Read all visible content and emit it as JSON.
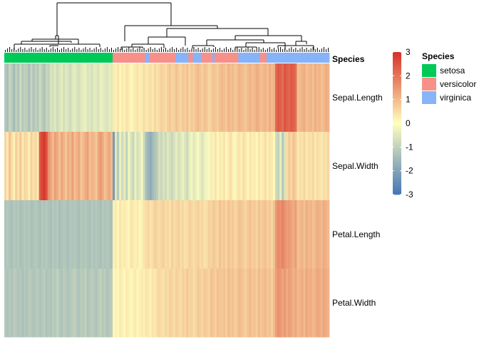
{
  "chart_data": {
    "type": "heatmap",
    "rows": [
      "Sepal.Length",
      "Sepal.Width",
      "Petal.Length",
      "Petal.Width"
    ],
    "annotation_title": "Species",
    "legend": {
      "colorbar_ticks": [
        3,
        2,
        1,
        0,
        -1,
        -2,
        -3
      ],
      "colorbar_range": [
        -3,
        3
      ],
      "species_title": "Species",
      "species": [
        {
          "name": "setosa",
          "color": "#00c957"
        },
        {
          "name": "versicolor",
          "color": "#f8908a"
        },
        {
          "name": "virginica",
          "color": "#87b3f8"
        }
      ]
    },
    "colors": {
      "low": "#4575b4",
      "mid": "#ffffbf",
      "high": "#d73027"
    },
    "column_species": [
      "setosa",
      "setosa",
      "setosa",
      "setosa",
      "setosa",
      "setosa",
      "setosa",
      "setosa",
      "setosa",
      "setosa",
      "setosa",
      "setosa",
      "setosa",
      "setosa",
      "setosa",
      "setosa",
      "setosa",
      "setosa",
      "setosa",
      "setosa",
      "setosa",
      "setosa",
      "setosa",
      "setosa",
      "setosa",
      "setosa",
      "setosa",
      "setosa",
      "setosa",
      "setosa",
      "setosa",
      "setosa",
      "setosa",
      "setosa",
      "setosa",
      "setosa",
      "setosa",
      "setosa",
      "setosa",
      "setosa",
      "setosa",
      "setosa",
      "setosa",
      "setosa",
      "setosa",
      "setosa",
      "setosa",
      "setosa",
      "setosa",
      "setosa",
      "versicolor",
      "versicolor",
      "versicolor",
      "versicolor",
      "versicolor",
      "versicolor",
      "versicolor",
      "versicolor",
      "versicolor",
      "versicolor",
      "versicolor",
      "versicolor",
      "versicolor",
      "versicolor",
      "versicolor",
      "virginica",
      "virginica",
      "versicolor",
      "versicolor",
      "versicolor",
      "versicolor",
      "versicolor",
      "versicolor",
      "versicolor",
      "versicolor",
      "versicolor",
      "versicolor",
      "versicolor",
      "versicolor",
      "virginica",
      "virginica",
      "virginica",
      "virginica",
      "virginica",
      "virginica",
      "versicolor",
      "versicolor",
      "virginica",
      "virginica",
      "virginica",
      "virginica",
      "versicolor",
      "versicolor",
      "versicolor",
      "versicolor",
      "versicolor",
      "virginica",
      "versicolor",
      "versicolor",
      "versicolor",
      "versicolor",
      "versicolor",
      "versicolor",
      "versicolor",
      "versicolor",
      "versicolor",
      "versicolor",
      "versicolor",
      "virginica",
      "virginica",
      "virginica",
      "virginica",
      "virginica",
      "virginica",
      "virginica",
      "virginica",
      "virginica",
      "virginica",
      "versicolor",
      "versicolor",
      "versicolor",
      "virginica",
      "virginica",
      "virginica",
      "virginica",
      "virginica",
      "virginica",
      "virginica",
      "virginica",
      "virginica",
      "virginica",
      "virginica",
      "virginica",
      "virginica",
      "virginica",
      "virginica",
      "virginica",
      "virginica",
      "virginica",
      "virginica",
      "virginica",
      "virginica",
      "virginica",
      "virginica",
      "virginica",
      "virginica",
      "virginica",
      "virginica",
      "virginica",
      "virginica"
    ],
    "values": [
      [
        -1.2,
        -1.4,
        -0.9,
        -1.1,
        -1.5,
        -1.0,
        -1.3,
        -0.8,
        -1.2,
        -1.0,
        -1.1,
        -1.4,
        -0.9,
        -1.3,
        -1.0,
        -1.2,
        -0.8,
        -1.1,
        -1.3,
        -0.9,
        -1.0,
        -0.6,
        -0.7,
        -0.5,
        -0.8,
        -0.6,
        -0.4,
        -0.7,
        -0.5,
        -0.6,
        -0.8,
        -0.5,
        -0.4,
        -0.6,
        -0.7,
        -0.5,
        -0.4,
        -0.3,
        -0.6,
        -0.5,
        -0.7,
        -0.4,
        -0.5,
        -0.6,
        -0.3,
        -0.4,
        -0.5,
        -0.6,
        -0.4,
        -0.5,
        0.3,
        0.2,
        0.4,
        0.1,
        0.3,
        0.2,
        0.4,
        0.3,
        0.1,
        0.2,
        0.3,
        0.4,
        0.2,
        0.3,
        0.5,
        0.3,
        0.4,
        0.5,
        0.3,
        0.6,
        0.4,
        0.5,
        0.7,
        0.6,
        0.5,
        0.7,
        0.8,
        0.6,
        0.7,
        0.9,
        0.7,
        0.6,
        0.8,
        0.7,
        0.9,
        0.6,
        0.8,
        0.7,
        0.9,
        1.0,
        0.8,
        0.7,
        0.9,
        0.8,
        0.6,
        0.7,
        0.9,
        0.8,
        0.7,
        0.9,
        1.0,
        0.9,
        0.8,
        1.1,
        0.9,
        1.0,
        0.8,
        0.9,
        1.1,
        1.0,
        0.9,
        0.8,
        1.0,
        1.1,
        0.9,
        1.0,
        1.2,
        1.1,
        0.9,
        1.0,
        1.1,
        0.9,
        1.2,
        1.0,
        1.1,
        2.2,
        2.4,
        2.3,
        2.1,
        2.5,
        2.3,
        2.2,
        2.4,
        2.3,
        2.1,
        0.9,
        1.0,
        1.1,
        1.2,
        0.9,
        1.0,
        1.1,
        0.9,
        1.2,
        1.0,
        1.1,
        0.9,
        1.0,
        1.2,
        1.1
      ],
      [
        0.6,
        0.3,
        0.9,
        0.5,
        0.2,
        0.7,
        0.4,
        0.8,
        0.3,
        0.6,
        0.5,
        0.2,
        0.7,
        0.4,
        0.6,
        0.3,
        2.4,
        2.7,
        2.9,
        2.5,
        1.6,
        1.3,
        1.0,
        1.4,
        1.2,
        0.9,
        1.3,
        1.1,
        0.8,
        1.2,
        1.0,
        1.4,
        0.9,
        1.1,
        1.3,
        0.8,
        1.0,
        1.2,
        1.4,
        0.9,
        1.1,
        1.0,
        0.8,
        1.3,
        1.5,
        1.2,
        0.9,
        1.1,
        1.3,
        1.0,
        -2.2,
        -0.5,
        -1.2,
        -0.3,
        -0.8,
        -0.4,
        -1.0,
        -0.2,
        -0.6,
        -0.9,
        -0.3,
        -0.7,
        -0.5,
        -0.2,
        -0.8,
        -1.4,
        -1.6,
        -1.8,
        -1.5,
        -1.3,
        -1.1,
        -0.7,
        -0.9,
        -0.6,
        -0.8,
        -0.5,
        -0.7,
        -0.9,
        -0.6,
        -0.4,
        -0.7,
        -0.5,
        -0.3,
        -0.6,
        -0.8,
        -0.4,
        -0.2,
        -0.5,
        -0.3,
        -0.1,
        -0.4,
        -0.6,
        -0.3,
        -0.2,
        0.1,
        -0.3,
        0.2,
        0.4,
        0.1,
        0.3,
        0.2,
        0.4,
        0.1,
        0.3,
        0.5,
        0.2,
        -0.1,
        0.3,
        0.4,
        0.2,
        0.5,
        0.3,
        0.1,
        0.4,
        0.2,
        0.3,
        0.1,
        0.4,
        0.2,
        0.3,
        0.5,
        0.2,
        0.4,
        0.3,
        0.1,
        -0.8,
        -1.0,
        -0.4,
        -1.2,
        -0.6,
        0.5,
        0.8,
        0.6,
        0.9,
        0.7,
        0.3,
        0.5,
        0.4,
        0.6,
        0.3,
        0.5,
        0.4,
        0.6,
        0.3,
        0.5,
        0.4,
        0.3,
        0.5,
        0.4,
        0.6
      ],
      [
        -1.3,
        -1.2,
        -1.3,
        -1.4,
        -1.2,
        -1.3,
        -1.2,
        -1.4,
        -1.3,
        -1.2,
        -1.3,
        -1.2,
        -1.4,
        -1.3,
        -1.2,
        -1.3,
        -1.4,
        -1.2,
        -1.3,
        -1.2,
        -1.3,
        -1.4,
        -1.2,
        -1.3,
        -1.2,
        -1.4,
        -1.3,
        -1.2,
        -1.3,
        -1.4,
        -1.2,
        -1.3,
        -1.2,
        -1.3,
        -1.4,
        -1.2,
        -1.3,
        -1.2,
        -1.3,
        -1.4,
        -1.2,
        -1.3,
        -1.2,
        -1.3,
        -1.4,
        -1.2,
        -1.3,
        -1.2,
        -1.3,
        -1.4,
        0.2,
        0.3,
        0.1,
        0.4,
        0.2,
        0.3,
        0.2,
        0.1,
        0.4,
        0.3,
        0.2,
        0.3,
        0.1,
        0.2,
        0.4,
        0.5,
        0.6,
        0.4,
        0.5,
        0.7,
        0.6,
        0.5,
        0.6,
        0.7,
        0.5,
        0.6,
        0.4,
        0.7,
        0.5,
        0.6,
        0.7,
        0.5,
        0.6,
        0.4,
        0.5,
        0.7,
        0.6,
        0.5,
        0.6,
        0.7,
        0.5,
        0.6,
        0.4,
        0.5,
        0.7,
        0.6,
        0.8,
        0.7,
        0.6,
        0.9,
        0.7,
        0.8,
        0.6,
        0.9,
        0.7,
        0.8,
        0.6,
        0.7,
        0.9,
        0.8,
        0.7,
        0.6,
        0.8,
        0.9,
        0.7,
        0.8,
        0.6,
        0.9,
        0.7,
        0.8,
        0.9,
        0.7,
        0.8,
        0.6,
        0.9,
        1.5,
        1.7,
        1.6,
        1.8,
        1.6,
        1.4,
        1.5,
        1.3,
        1.2,
        1.4,
        0.9,
        1.0,
        1.1,
        0.9,
        1.2,
        1.0,
        1.1,
        0.9,
        1.0,
        1.2,
        1.1,
        1.0,
        1.2,
        1.1,
        1.0
      ],
      [
        -1.2,
        -1.3,
        -1.2,
        -1.3,
        -1.1,
        -1.2,
        -1.3,
        -1.2,
        -1.4,
        -1.2,
        -1.3,
        -1.1,
        -1.2,
        -1.3,
        -1.2,
        -1.1,
        -1.3,
        -1.2,
        -1.1,
        -1.3,
        -1.2,
        -1.3,
        -1.1,
        -1.2,
        -1.0,
        -1.2,
        -1.3,
        -1.1,
        -1.2,
        -1.3,
        -1.2,
        -1.1,
        -1.0,
        -1.2,
        -1.3,
        -1.1,
        -1.2,
        -1.0,
        -1.3,
        -1.2,
        -1.1,
        -1.2,
        -1.3,
        -1.1,
        -1.0,
        -1.2,
        -1.1,
        -1.3,
        -1.2,
        -1.1,
        0.1,
        0.2,
        0.1,
        0.3,
        0.2,
        0.1,
        0.3,
        0.2,
        0.1,
        0.2,
        0.3,
        0.1,
        0.2,
        0.3,
        0.2,
        0.4,
        0.3,
        0.2,
        0.4,
        0.3,
        0.5,
        0.6,
        0.5,
        0.4,
        0.6,
        0.5,
        0.7,
        0.6,
        0.5,
        0.7,
        0.6,
        0.5,
        0.7,
        0.6,
        0.8,
        0.6,
        0.7,
        0.5,
        0.6,
        0.8,
        0.7,
        0.6,
        0.8,
        0.7,
        0.6,
        0.9,
        0.8,
        0.7,
        0.9,
        0.8,
        0.8,
        0.9,
        0.7,
        1.0,
        0.8,
        0.9,
        0.7,
        0.8,
        1.0,
        0.9,
        0.8,
        0.7,
        0.9,
        1.0,
        0.8,
        0.9,
        0.7,
        1.0,
        0.8,
        0.9,
        1.0,
        0.8,
        0.9,
        0.7,
        1.0,
        1.4,
        1.6,
        1.5,
        1.3,
        1.5,
        1.2,
        1.4,
        1.3,
        1.1,
        1.3,
        1.0,
        1.1,
        1.2,
        1.0,
        1.3,
        1.1,
        1.2,
        1.0,
        1.1,
        1.3,
        1.2,
        1.1,
        1.3,
        1.2,
        1.1
      ]
    ]
  }
}
